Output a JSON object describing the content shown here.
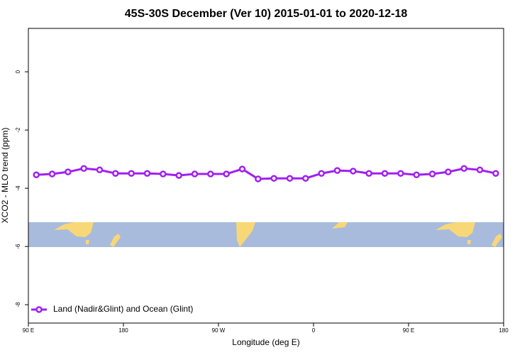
{
  "chart_data": {
    "type": "line",
    "title": "45S-30S December (Ver 10)   2015-01-01 to 2020-12-18",
    "x_label": "Longitude (deg E)",
    "y_label": "XCO2 - MLO trend (ppm)",
    "xlim": [
      90,
      540
    ],
    "xticks": [
      {
        "value": 90,
        "label": "90 E"
      },
      180,
      {
        "value": 270,
        "label": "90 W"
      },
      {
        "value": 360,
        "label": "0"
      },
      {
        "value": 450,
        "label": "90 E"
      },
      {
        "value": 540,
        "label": "180"
      }
    ],
    "ylim": [
      -8.63,
      1.49
    ],
    "yticks": [
      0,
      -2,
      -4,
      -6,
      -8
    ],
    "legend": "bottom-left",
    "x": [
      97.5,
      112.5,
      127.5,
      142.5,
      157.5,
      172.5,
      187.5,
      202.5,
      217.5,
      232.5,
      247.5,
      262.5,
      277.5,
      292.5,
      307.5,
      322.5,
      337.5,
      352.5,
      367.5,
      382.5,
      397.5,
      412.5,
      427.5,
      442.5,
      457.5,
      472.5,
      487.5,
      502.5,
      517.5,
      532.5
    ],
    "series": [
      {
        "name": "Land (Nadir&Glint) and Ocean (Glint)",
        "color": "#a020f0",
        "values": [
          -3.54,
          -3.51,
          -3.44,
          -3.32,
          -3.37,
          -3.49,
          -3.49,
          -3.49,
          -3.51,
          -3.56,
          -3.51,
          -3.51,
          -3.51,
          -3.34,
          -3.68,
          -3.66,
          -3.66,
          -3.66,
          -3.49,
          -3.39,
          -3.41,
          -3.49,
          -3.49,
          -3.49,
          -3.54,
          -3.51,
          -3.44,
          -3.32,
          -3.37,
          -3.49
        ]
      }
    ]
  }
}
